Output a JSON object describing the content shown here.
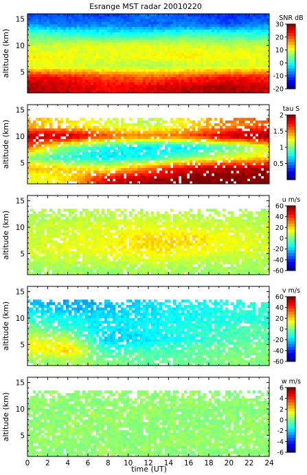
{
  "title": "Esrange MST radar 20010220",
  "xlabel": "time (UT)",
  "colors": {
    "frame": "#000000",
    "background": "#ffffff"
  },
  "chart_data": [
    {
      "type": "heatmap",
      "id": "snr",
      "ylabel": "altitude (km)",
      "xlim": [
        0,
        24
      ],
      "ylim": [
        1,
        16
      ],
      "xticks": [
        "0",
        "2",
        "4",
        "6",
        "8",
        "10",
        "12",
        "14",
        "16",
        "18",
        "20",
        "22",
        "24"
      ],
      "yticks": [
        5,
        10,
        15
      ],
      "colorbar": {
        "label": "SNR dB",
        "min": -20,
        "max": 30,
        "ticks": [
          -20,
          -10,
          0,
          10,
          20,
          30
        ]
      },
      "pattern": "Strong signal (20-30 dB) below 5 km, 5-10 dB bands between 5 and 12 km, weak (-15 to -5 dB) above 12 km; a layer near 2 km becomes uniform around -8 dB after about 2 UT",
      "x": [
        0,
        4,
        8,
        12,
        16,
        20,
        24
      ],
      "y": [
        2,
        4,
        6,
        8,
        10,
        12,
        14,
        16
      ],
      "z": [
        [
          28,
          26,
          24,
          25,
          27,
          28,
          26
        ],
        [
          24,
          23,
          20,
          19,
          21,
          23,
          22
        ],
        [
          10,
          9,
          8,
          7,
          8,
          9,
          10
        ],
        [
          12,
          11,
          10,
          11,
          12,
          11,
          10
        ],
        [
          8,
          9,
          10,
          10,
          9,
          8,
          9
        ],
        [
          4,
          2,
          0,
          1,
          3,
          2,
          1
        ],
        [
          -6,
          -8,
          -7,
          -9,
          -8,
          -10,
          -7
        ],
        [
          -12,
          -10,
          -12,
          -8,
          -10,
          -12,
          -11
        ]
      ]
    },
    {
      "type": "heatmap",
      "id": "tau",
      "ylabel": "altitude (km)",
      "xlim": [
        0,
        24
      ],
      "ylim": [
        1,
        16
      ],
      "xticks": [
        "0",
        "2",
        "4",
        "6",
        "8",
        "10",
        "12",
        "14",
        "16",
        "18",
        "20",
        "22",
        "24"
      ],
      "yticks": [
        5,
        10,
        15
      ],
      "colorbar": {
        "label": "tau S",
        "min": 0,
        "max": 2,
        "ticks": [
          0.5,
          1,
          1.5,
          2
        ]
      },
      "pattern": "Saturated values (about 2) at 8-10 km and below 5 km, lower values (about 0.7) in a slanted layer from 4 km at 5 UT to 7 km at 20 UT; data gaps above 13 km and below 2 km",
      "x": [
        0,
        4,
        8,
        12,
        16,
        20,
        24
      ],
      "y": [
        2,
        4,
        6,
        8,
        10,
        12
      ],
      "z": [
        [
          1.2,
          1.3,
          1.8,
          1.9,
          2.0,
          2.0,
          2.0
        ],
        [
          1.4,
          1.3,
          1.2,
          1.5,
          1.8,
          1.9,
          1.9
        ],
        [
          1.0,
          0.8,
          0.7,
          0.8,
          1.0,
          1.2,
          1.3
        ],
        [
          1.6,
          1.0,
          0.8,
          0.7,
          0.7,
          0.9,
          1.2
        ],
        [
          1.9,
          1.9,
          1.6,
          1.5,
          1.6,
          1.9,
          2.0
        ],
        [
          1.4,
          1.3,
          1.2,
          1.1,
          1.3,
          1.5,
          1.6
        ]
      ]
    },
    {
      "type": "heatmap",
      "id": "u",
      "ylabel": "altitude (km)",
      "xlim": [
        0,
        24
      ],
      "ylim": [
        1,
        16
      ],
      "xticks": [
        "0",
        "2",
        "4",
        "6",
        "8",
        "10",
        "12",
        "14",
        "16",
        "18",
        "20",
        "22",
        "24"
      ],
      "yticks": [
        5,
        10,
        15
      ],
      "colorbar": {
        "label": "u m/s",
        "min": -60,
        "max": 60,
        "ticks": [
          -60,
          -40,
          -20,
          0,
          20,
          40,
          60
        ]
      },
      "pattern": "Mostly weak winds 0-15 m/s, a maximum of about 20 m/s near 7 km between 10 and 18 UT; sparse data above 12 km",
      "x": [
        0,
        4,
        8,
        12,
        16,
        20,
        24
      ],
      "y": [
        2,
        4,
        6,
        8,
        10,
        12
      ],
      "z": [
        [
          5,
          4,
          3,
          5,
          4,
          3,
          4
        ],
        [
          8,
          9,
          10,
          12,
          10,
          8,
          7
        ],
        [
          10,
          12,
          15,
          18,
          17,
          13,
          10
        ],
        [
          9,
          11,
          14,
          20,
          19,
          14,
          9
        ],
        [
          7,
          9,
          11,
          12,
          11,
          9,
          8
        ],
        [
          5,
          6,
          7,
          8,
          7,
          6,
          5
        ]
      ]
    },
    {
      "type": "heatmap",
      "id": "v",
      "ylabel": "altitude (km)",
      "xlim": [
        0,
        24
      ],
      "ylim": [
        1,
        16
      ],
      "xticks": [
        "0",
        "2",
        "4",
        "6",
        "8",
        "10",
        "12",
        "14",
        "16",
        "18",
        "20",
        "22",
        "24"
      ],
      "yticks": [
        5,
        10,
        15
      ],
      "colorbar": {
        "label": "v m/s",
        "min": -60,
        "max": 60,
        "ticks": [
          -60,
          -40,
          -20,
          0,
          20,
          40,
          60
        ]
      },
      "pattern": "Northward (about +20 m/s) at 4-6 km before 6 UT, southward (-15 to -25 m/s) at 5-12 km after 6 UT, near zero elsewhere",
      "x": [
        0,
        4,
        8,
        12,
        16,
        20,
        24
      ],
      "y": [
        2,
        4,
        6,
        8,
        10,
        12
      ],
      "z": [
        [
          2,
          5,
          0,
          -3,
          -2,
          0,
          1
        ],
        [
          15,
          20,
          -10,
          -8,
          -5,
          -2,
          0
        ],
        [
          10,
          8,
          -22,
          -18,
          -12,
          -6,
          -3
        ],
        [
          0,
          -8,
          -18,
          -15,
          -10,
          -8,
          -5
        ],
        [
          -10,
          -15,
          -18,
          -16,
          -14,
          -12,
          -10
        ],
        [
          -20,
          -25,
          -22,
          -18,
          -15,
          -12,
          -10
        ]
      ]
    },
    {
      "type": "heatmap",
      "id": "w",
      "ylabel": "altitude (km)",
      "xlim": [
        0,
        24
      ],
      "ylim": [
        1,
        16
      ],
      "xticks": [
        "0",
        "2",
        "4",
        "6",
        "8",
        "10",
        "12",
        "14",
        "16",
        "18",
        "20",
        "22",
        "24"
      ],
      "yticks": [
        5,
        10,
        15
      ],
      "colorbar": {
        "label": "w m/s",
        "min": -6,
        "max": 6,
        "ticks": [
          -6,
          -4,
          -2,
          0,
          2,
          4,
          6
        ]
      },
      "pattern": "Vertical winds near zero (within about +/-0.5 m/s) everywhere; data between 1 and 13 km",
      "x": [
        0,
        4,
        8,
        12,
        16,
        20,
        24
      ],
      "y": [
        2,
        4,
        6,
        8,
        10,
        12
      ],
      "z": [
        [
          0.2,
          0.1,
          0.3,
          0.2,
          0.1,
          0.2,
          0.1
        ],
        [
          0.3,
          0.2,
          0.1,
          0.2,
          0.3,
          0.2,
          0.2
        ],
        [
          0.2,
          0.3,
          0.2,
          0.1,
          0.2,
          0.3,
          0.2
        ],
        [
          0.1,
          0.2,
          0.3,
          0.2,
          0.1,
          0.2,
          0.3
        ],
        [
          0.2,
          0.1,
          0.2,
          0.3,
          0.2,
          0.1,
          0.2
        ],
        [
          0.3,
          0.2,
          0.1,
          0.2,
          0.3,
          0.2,
          0.1
        ]
      ]
    }
  ]
}
